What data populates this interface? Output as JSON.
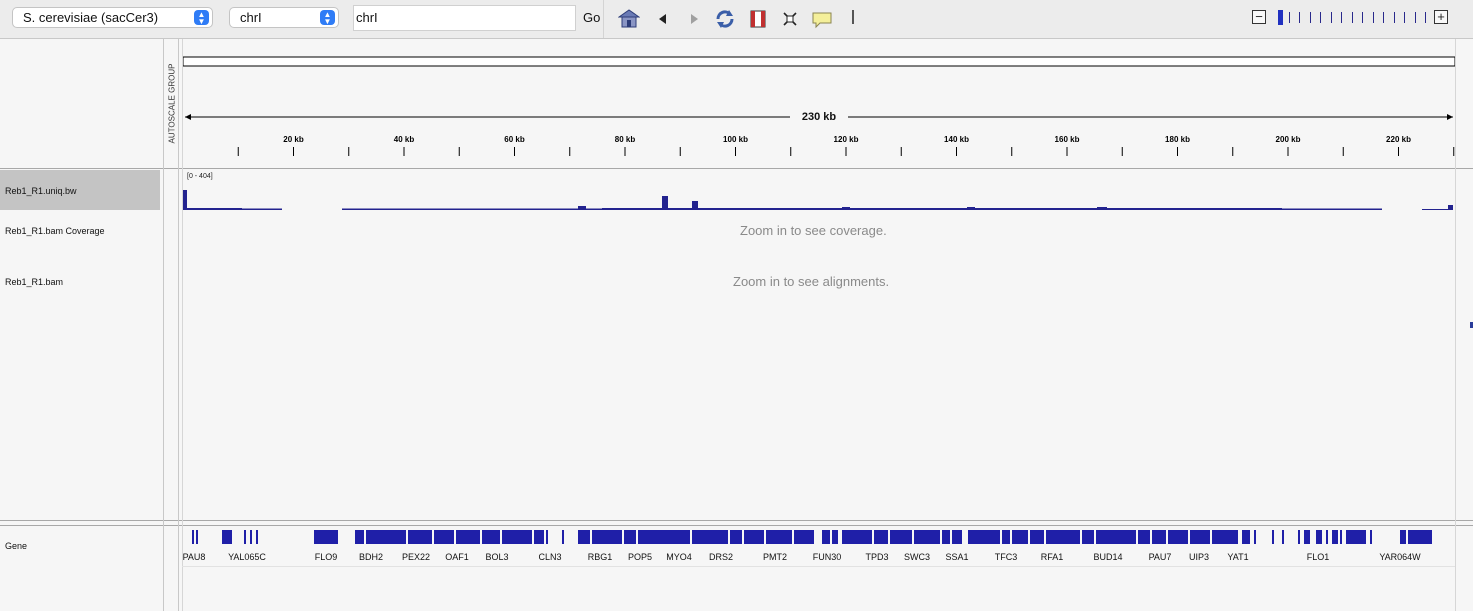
{
  "toolbar": {
    "genome": "S. cerevisiae (sacCer3)",
    "chromosome": "chrI",
    "locus": "chrI",
    "go_label": "Go",
    "icons": [
      "home-icon",
      "back-icon",
      "forward-icon",
      "refresh-icon",
      "roi-icon",
      "resize-icon",
      "popup-text-icon"
    ],
    "zoom_level_fraction": 0.0
  },
  "ruler": {
    "span_label": "230 kb",
    "tick_labels": [
      "20 kb",
      "40 kb",
      "60 kb",
      "80 kb",
      "100 kb",
      "120 kb",
      "140 kb",
      "160 kb",
      "180 kb",
      "200 kb",
      "220 kb"
    ],
    "autoscale_label": "AUTOSCALE GROUP"
  },
  "tracks": {
    "bigwig_name": "Reb1_R1.uniq.bw",
    "bigwig_range": "[0 - 404]",
    "coverage_name": "Reb1_R1.bam Coverage",
    "coverage_message": "Zoom in to see coverage.",
    "alignments_name": "Reb1_R1.bam",
    "alignments_message": "Zoom in to see alignments.",
    "gene_name": "Gene"
  },
  "genes": {
    "labels": [
      "PAU8",
      "YAL065C",
      "FLO9",
      "BDH2",
      "PEX22",
      "OAF1",
      "BOL3",
      "CLN3",
      "RBG1",
      "POP5",
      "MYO4",
      "DRS2",
      "PMT2",
      "FUN30",
      "TPD3",
      "SWC3",
      "SSA1",
      "TFC3",
      "RFA1",
      "BUD14",
      "PAU7",
      "UIP3",
      "YAT1",
      "FLO1",
      "YAR064W"
    ]
  },
  "colors": {
    "feature": "#1f1fa8",
    "signal": "#23238f"
  }
}
